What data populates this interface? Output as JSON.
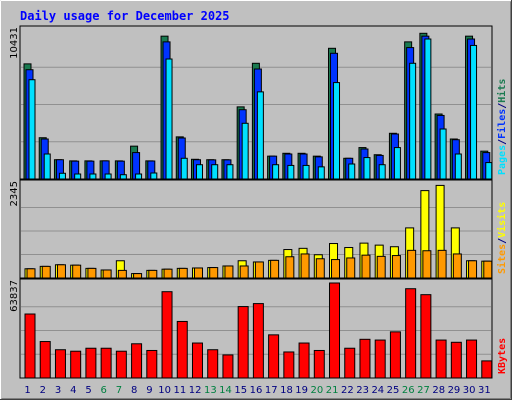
{
  "title": "Daily usage for December 2025",
  "colors": {
    "background": "#c0c0c0",
    "plot": "#c0c0c0",
    "title_text": "#0000ff",
    "hits": "#1a7a50",
    "files": "#0033ff",
    "pages": "#00e0ff",
    "visits": "#ffff00",
    "sites": "#ff9900",
    "kbytes": "#ff0000",
    "weekend_label": "#008040",
    "weekday_label": "#000080"
  },
  "chart_data": [
    {
      "type": "bar",
      "name": "hits-files-pages",
      "ymax_label": "10431",
      "ylim": [
        0,
        10431
      ],
      "legend": [
        "Pages",
        "/",
        "Files",
        "/",
        "Hits"
      ],
      "categories": [
        "1",
        "2",
        "3",
        "4",
        "5",
        "6",
        "7",
        "8",
        "9",
        "10",
        "11",
        "12",
        "13",
        "14",
        "15",
        "16",
        "17",
        "18",
        "19",
        "20",
        "21",
        "22",
        "23",
        "24",
        "25",
        "26",
        "27",
        "28",
        "29",
        "30",
        "31"
      ],
      "weekend": [
        false,
        false,
        false,
        false,
        false,
        true,
        true,
        false,
        false,
        false,
        false,
        false,
        true,
        true,
        false,
        false,
        false,
        false,
        false,
        true,
        true,
        false,
        false,
        false,
        false,
        true,
        true,
        false,
        false,
        false,
        false
      ],
      "series": [
        {
          "name": "Hits",
          "values": [
            8060,
            2890,
            1350,
            1270,
            1270,
            1270,
            1270,
            2300,
            1270,
            10000,
            2950,
            1380,
            1350,
            1350,
            5050,
            8100,
            1600,
            1800,
            1800,
            1600,
            9150,
            1450,
            2200,
            1700,
            3200,
            9600,
            10200,
            4550,
            2800,
            10000,
            1950
          ]
        },
        {
          "name": "Files",
          "values": [
            7650,
            2800,
            1350,
            1250,
            1250,
            1270,
            1250,
            1850,
            1260,
            9600,
            2870,
            1350,
            1340,
            1340,
            4850,
            7700,
            1600,
            1750,
            1750,
            1550,
            8800,
            1450,
            2100,
            1650,
            3150,
            9200,
            10000,
            4450,
            2750,
            9800,
            1850
          ]
        },
        {
          "name": "Pages",
          "values": [
            6950,
            1750,
            400,
            350,
            350,
            350,
            300,
            350,
            420,
            8400,
            1450,
            1000,
            1000,
            1000,
            3900,
            6100,
            1000,
            950,
            950,
            850,
            6750,
            1050,
            1500,
            1000,
            2200,
            8100,
            9800,
            3500,
            1750,
            9350,
            1150
          ]
        }
      ]
    },
    {
      "type": "bar",
      "name": "visits-sites",
      "ymax_label": "2345",
      "ylim": [
        0,
        2345
      ],
      "legend": [
        "Sites",
        "/",
        "Visits"
      ],
      "categories": [
        "1",
        "2",
        "3",
        "4",
        "5",
        "6",
        "7",
        "8",
        "9",
        "10",
        "11",
        "12",
        "13",
        "14",
        "15",
        "16",
        "17",
        "18",
        "19",
        "20",
        "21",
        "22",
        "23",
        "24",
        "25",
        "26",
        "27",
        "28",
        "29",
        "30",
        "31"
      ],
      "series": [
        {
          "name": "Visits",
          "values": [
            230,
            290,
            330,
            320,
            240,
            200,
            430,
            110,
            190,
            220,
            240,
            250,
            260,
            300,
            430,
            400,
            440,
            710,
            740,
            580,
            860,
            760,
            870,
            820,
            780,
            1250,
            2180,
            2310,
            1250,
            430,
            420
          ]
        },
        {
          "name": "Sites",
          "values": [
            230,
            290,
            330,
            320,
            240,
            200,
            190,
            110,
            190,
            220,
            240,
            250,
            260,
            300,
            300,
            400,
            440,
            530,
            600,
            480,
            460,
            500,
            570,
            540,
            560,
            690,
            680,
            690,
            600,
            430,
            420
          ]
        }
      ]
    },
    {
      "type": "bar",
      "name": "kbytes",
      "ymax_label": "63837",
      "ylim": [
        0,
        63837
      ],
      "legend": [
        "KBytes"
      ],
      "categories": [
        "1",
        "2",
        "3",
        "4",
        "5",
        "6",
        "7",
        "8",
        "9",
        "10",
        "11",
        "12",
        "13",
        "14",
        "15",
        "16",
        "17",
        "18",
        "19",
        "20",
        "21",
        "22",
        "23",
        "24",
        "25",
        "26",
        "27",
        "28",
        "29",
        "30",
        "31"
      ],
      "series": [
        {
          "name": "KBytes",
          "values": [
            43000,
            24500,
            19000,
            18000,
            20000,
            20000,
            18000,
            23000,
            18500,
            58000,
            38000,
            23500,
            19000,
            15500,
            48000,
            50000,
            29000,
            17500,
            23500,
            18500,
            63837,
            20000,
            26000,
            25500,
            31000,
            60000,
            56000,
            25500,
            24000,
            25500,
            11500
          ]
        }
      ]
    }
  ]
}
